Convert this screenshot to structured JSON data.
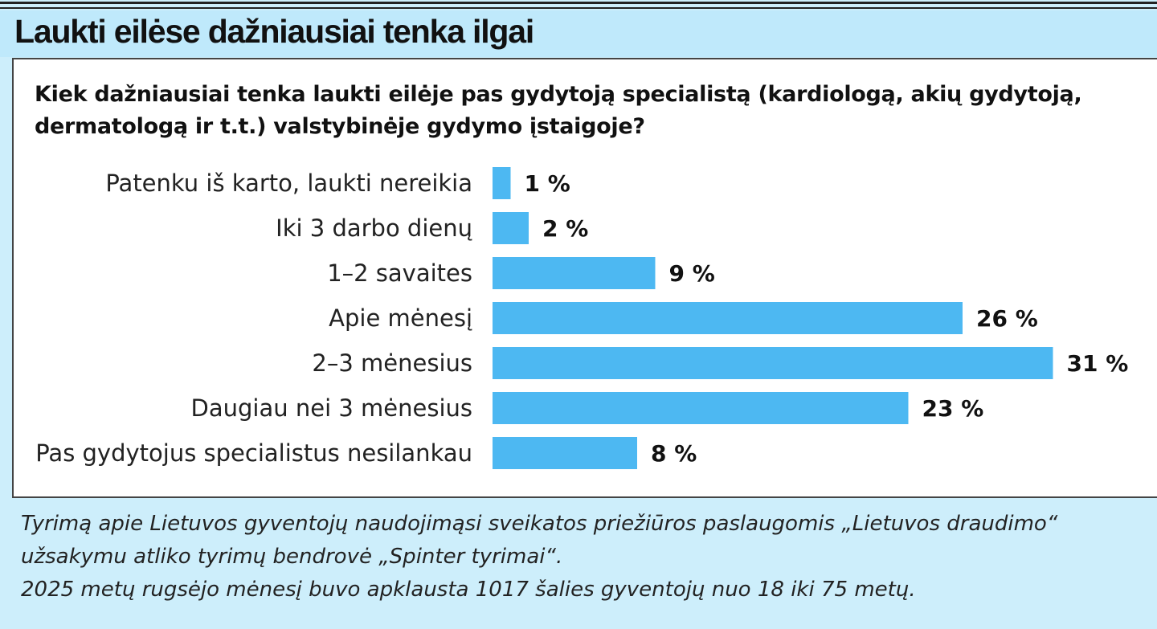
{
  "header": {
    "title": "Laukti eilėse dažniausiai tenka ilgai"
  },
  "question": "Kiek dažniausiai tenka laukti eilėje pas gydytoją specialistą (kardiologą, akių gydytoją, dermatologą ir t.t.) valstybinėje gydymo įstaigoje?",
  "chart_data": {
    "type": "bar",
    "orientation": "horizontal",
    "categories": [
      "Patenku iš karto, laukti nereikia",
      "Iki 3 darbo dienų",
      "1–2 savaites",
      "Apie mėnesį",
      "2–3 mėnesius",
      "Daugiau nei 3 mėnesius",
      "Pas gydytojus specialistus nesilankau"
    ],
    "values": [
      1,
      2,
      9,
      26,
      31,
      23,
      8
    ],
    "value_labels": [
      "1 %",
      "2 %",
      "9 %",
      "26 %",
      "31 %",
      "23 %",
      "8 %"
    ],
    "unit": "%",
    "bar_color": "#4db8f2",
    "grid": false,
    "legend": false
  },
  "footnote": {
    "lines": [
      "Tyrimą apie Lietuvos gyventojų naudojimąsi sveikatos priežiūros paslaugomis „Lietuvos draudimo“",
      "užsakymu atliko tyrimų bendrovė „Spinter tyrimai“.",
      "2025 metų rugsėjo mėnesį buvo apklausta 1017 šalies gyventojų nuo 18 iki 75 metų."
    ]
  },
  "colors": {
    "background": "#cdeefb",
    "header_band": "#bfe9fb",
    "panel": "#ffffff",
    "bar": "#4db8f2"
  }
}
